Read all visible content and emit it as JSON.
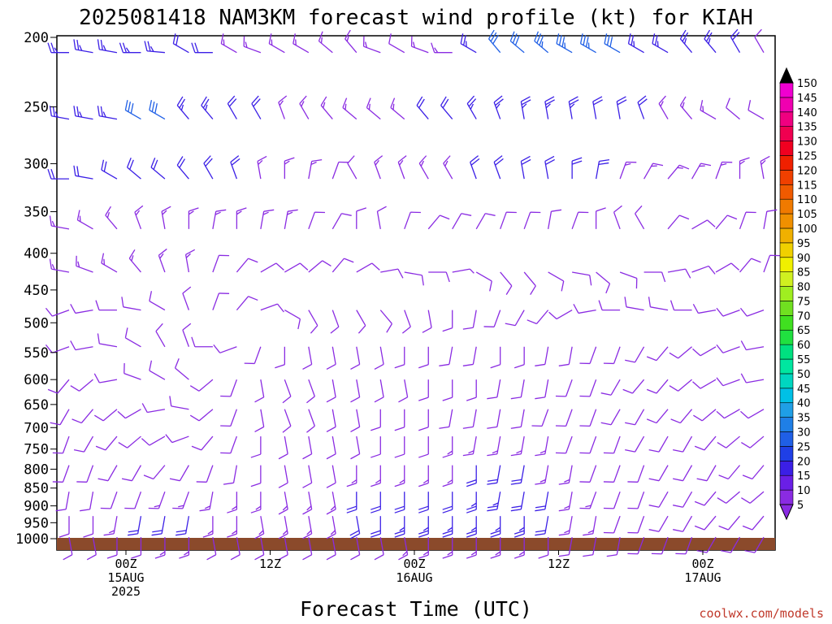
{
  "chart_data": {
    "type": "wind_barb_profile",
    "title": "2025081418 NAM3KM forecast wind profile (kt) for KIAH",
    "xlabel": "Forecast Time (UTC)",
    "credit": "coolwx.com/models",
    "y_axis": {
      "ticks": [
        200,
        250,
        300,
        350,
        400,
        450,
        500,
        550,
        600,
        650,
        700,
        750,
        800,
        850,
        900,
        950,
        1000
      ],
      "tick_labels": [
        "200",
        "250",
        "300",
        "350",
        "400",
        "450",
        "500",
        "550",
        "600",
        "650",
        "700",
        "750",
        "800",
        "850",
        "900",
        "950",
        "1000"
      ],
      "range": [
        200,
        1050
      ],
      "scale": "log"
    },
    "x_axis": {
      "range_hours": [
        -6,
        43
      ],
      "ticks": [
        {
          "hour": 0,
          "lines": [
            "00Z",
            "15AUG",
            "2025"
          ]
        },
        {
          "hour": 12,
          "lines": [
            "12Z"
          ]
        },
        {
          "hour": 24,
          "lines": [
            "00Z",
            "16AUG"
          ]
        },
        {
          "hour": 36,
          "lines": [
            "12Z"
          ]
        },
        {
          "hour": 48,
          "lines": [
            "00Z",
            "17AUG"
          ]
        }
      ]
    },
    "ground_color": "#8b4a2b",
    "colorbar": {
      "labels": [
        "5",
        "10",
        "15",
        "20",
        "25",
        "30",
        "35",
        "40",
        "45",
        "50",
        "55",
        "60",
        "65",
        "70",
        "75",
        "80",
        "85",
        "90",
        "95",
        "100",
        "105",
        "110",
        "115",
        "120",
        "125",
        "130",
        "135",
        "140",
        "145",
        "150"
      ],
      "colors": [
        "#8a2be2",
        "#6a1fe6",
        "#3b1fe6",
        "#1f3fe6",
        "#1f5fe6",
        "#1f7fe6",
        "#1f9fe6",
        "#00c0e6",
        "#00d6c0",
        "#00e6a0",
        "#00e080",
        "#20e040",
        "#40e020",
        "#70e020",
        "#a0ee20",
        "#d0f020",
        "#f0f000",
        "#f0d000",
        "#f0b000",
        "#f09000",
        "#f07a00",
        "#f05a00",
        "#f04000",
        "#f02000",
        "#f00020",
        "#f00050",
        "#f00080",
        "#f000b0",
        "#f000d0",
        "#e000e0"
      ]
    },
    "barb_columns": 30,
    "levels_hpa": [
      200,
      250,
      300,
      350,
      400,
      450,
      500,
      550,
      600,
      650,
      700,
      750,
      800,
      850,
      900,
      950,
      1000
    ],
    "barbs": [
      {
        "p": 210,
        "dirs": [
          270,
          280,
          280,
          270,
          275,
          300,
          270,
          300,
          290,
          300,
          300,
          310,
          320,
          290,
          300,
          290,
          270,
          300,
          320,
          310,
          310,
          300,
          300,
          300,
          300,
          300,
          320,
          320,
          330,
          330
        ],
        "spd": [
          25,
          25,
          25,
          25,
          25,
          20,
          20,
          15,
          15,
          15,
          15,
          15,
          15,
          15,
          10,
          15,
          15,
          25,
          30,
          30,
          35,
          35,
          35,
          30,
          25,
          25,
          25,
          25,
          20,
          10
        ]
      },
      {
        "p": 260,
        "dirs": [
          280,
          280,
          280,
          300,
          300,
          320,
          320,
          330,
          330,
          340,
          330,
          320,
          310,
          310,
          310,
          320,
          320,
          330,
          340,
          350,
          350,
          350,
          350,
          350,
          340,
          330,
          320,
          300,
          310,
          300
        ],
        "spd": [
          25,
          25,
          25,
          30,
          30,
          25,
          25,
          20,
          20,
          15,
          15,
          15,
          15,
          15,
          15,
          20,
          20,
          25,
          25,
          25,
          25,
          25,
          20,
          20,
          20,
          15,
          15,
          15,
          10,
          10
        ]
      },
      {
        "p": 315,
        "dirs": [
          270,
          280,
          300,
          310,
          310,
          320,
          330,
          340,
          350,
          360,
          10,
          20,
          330,
          340,
          340,
          330,
          330,
          340,
          340,
          350,
          350,
          360,
          10,
          20,
          30,
          40,
          30,
          20,
          360,
          350
        ],
        "spd": [
          20,
          20,
          20,
          20,
          20,
          20,
          20,
          20,
          15,
          15,
          15,
          10,
          10,
          15,
          15,
          15,
          15,
          20,
          20,
          20,
          20,
          20,
          20,
          15,
          15,
          15,
          15,
          15,
          15,
          15
        ]
      },
      {
        "p": 370,
        "dirs": [
          280,
          300,
          320,
          340,
          350,
          360,
          10,
          360,
          10,
          10,
          20,
          30,
          360,
          350,
          20,
          40,
          30,
          30,
          20,
          20,
          10,
          20,
          360,
          340,
          330,
          40,
          60,
          40,
          20,
          10
        ],
        "spd": [
          15,
          15,
          15,
          15,
          15,
          15,
          15,
          15,
          15,
          15,
          10,
          10,
          10,
          10,
          10,
          10,
          10,
          10,
          10,
          10,
          10,
          10,
          10,
          10,
          10,
          10,
          10,
          10,
          10,
          10
        ]
      },
      {
        "p": 425,
        "dirs": [
          280,
          290,
          300,
          320,
          340,
          350,
          20,
          40,
          60,
          60,
          50,
          40,
          60,
          80,
          100,
          90,
          80,
          120,
          140,
          140,
          120,
          100,
          130,
          110,
          90,
          80,
          70,
          60,
          40,
          20
        ],
        "spd": [
          15,
          15,
          15,
          15,
          15,
          15,
          10,
          10,
          10,
          10,
          10,
          10,
          10,
          10,
          10,
          10,
          5,
          10,
          10,
          10,
          10,
          10,
          10,
          10,
          10,
          10,
          10,
          10,
          10,
          10
        ]
      },
      {
        "p": 480,
        "dirs": [
          250,
          260,
          270,
          280,
          300,
          340,
          20,
          40,
          70,
          120,
          150,
          160,
          150,
          140,
          160,
          170,
          180,
          190,
          200,
          210,
          220,
          240,
          260,
          270,
          280,
          280,
          270,
          260,
          250,
          250
        ],
        "spd": [
          10,
          10,
          10,
          10,
          10,
          10,
          10,
          10,
          10,
          10,
          10,
          10,
          10,
          10,
          10,
          10,
          10,
          10,
          10,
          10,
          10,
          10,
          10,
          10,
          10,
          10,
          10,
          10,
          10,
          10
        ]
      },
      {
        "p": 540,
        "dirs": [
          250,
          260,
          280,
          300,
          330,
          340,
          270,
          250,
          200,
          180,
          170,
          170,
          170,
          170,
          180,
          180,
          190,
          190,
          180,
          180,
          190,
          190,
          200,
          200,
          210,
          220,
          230,
          240,
          250,
          260
        ],
        "spd": [
          10,
          10,
          10,
          10,
          10,
          10,
          10,
          10,
          10,
          10,
          10,
          10,
          10,
          10,
          10,
          10,
          10,
          10,
          10,
          10,
          10,
          10,
          10,
          10,
          10,
          10,
          10,
          10,
          10,
          10
        ]
      },
      {
        "p": 600,
        "dirs": [
          220,
          230,
          260,
          290,
          300,
          310,
          230,
          200,
          170,
          160,
          160,
          170,
          170,
          170,
          170,
          180,
          180,
          180,
          190,
          190,
          190,
          200,
          200,
          210,
          220,
          220,
          230,
          240,
          250,
          260
        ],
        "spd": [
          10,
          10,
          10,
          10,
          10,
          10,
          10,
          10,
          10,
          10,
          10,
          10,
          10,
          10,
          10,
          10,
          10,
          10,
          10,
          10,
          10,
          10,
          10,
          10,
          10,
          10,
          10,
          10,
          10,
          10
        ]
      },
      {
        "p": 660,
        "dirs": [
          210,
          220,
          230,
          240,
          260,
          280,
          230,
          200,
          170,
          160,
          160,
          170,
          170,
          180,
          180,
          180,
          190,
          190,
          190,
          190,
          200,
          200,
          200,
          210,
          210,
          220,
          220,
          230,
          240,
          240
        ],
        "spd": [
          10,
          10,
          10,
          10,
          10,
          10,
          10,
          10,
          10,
          10,
          10,
          10,
          10,
          10,
          10,
          10,
          10,
          10,
          10,
          10,
          10,
          10,
          10,
          10,
          10,
          10,
          10,
          10,
          10,
          10
        ]
      },
      {
        "p": 720,
        "dirs": [
          200,
          210,
          220,
          230,
          240,
          250,
          220,
          200,
          180,
          170,
          170,
          170,
          170,
          180,
          180,
          180,
          180,
          190,
          190,
          190,
          190,
          200,
          200,
          200,
          210,
          210,
          210,
          220,
          230,
          230
        ],
        "spd": [
          10,
          10,
          10,
          10,
          10,
          10,
          10,
          10,
          10,
          10,
          10,
          10,
          10,
          10,
          10,
          10,
          15,
          15,
          15,
          15,
          15,
          10,
          10,
          10,
          10,
          10,
          10,
          10,
          10,
          10
        ]
      },
      {
        "p": 790,
        "dirs": [
          200,
          200,
          210,
          210,
          220,
          210,
          200,
          190,
          180,
          170,
          170,
          170,
          180,
          180,
          180,
          180,
          180,
          180,
          190,
          190,
          190,
          190,
          200,
          200,
          200,
          210,
          210,
          210,
          220,
          220
        ],
        "spd": [
          10,
          10,
          10,
          10,
          10,
          10,
          10,
          10,
          10,
          10,
          10,
          10,
          15,
          15,
          15,
          15,
          15,
          20,
          20,
          20,
          15,
          15,
          10,
          10,
          10,
          10,
          10,
          10,
          10,
          10
        ]
      },
      {
        "p": 860,
        "dirs": [
          190,
          190,
          200,
          200,
          200,
          200,
          190,
          180,
          180,
          170,
          170,
          170,
          180,
          180,
          180,
          180,
          180,
          180,
          190,
          190,
          190,
          190,
          200,
          200,
          200,
          210,
          210,
          220,
          230,
          230
        ],
        "spd": [
          10,
          10,
          10,
          10,
          15,
          15,
          15,
          15,
          15,
          15,
          15,
          15,
          20,
          20,
          20,
          20,
          20,
          25,
          25,
          20,
          20,
          15,
          15,
          10,
          10,
          10,
          10,
          10,
          10,
          10
        ]
      },
      {
        "p": 930,
        "dirs": [
          180,
          180,
          190,
          190,
          190,
          190,
          180,
          180,
          170,
          170,
          170,
          170,
          170,
          180,
          180,
          180,
          180,
          180,
          180,
          180,
          190,
          190,
          190,
          200,
          200,
          210,
          210,
          220,
          220,
          220
        ],
        "spd": [
          10,
          10,
          15,
          20,
          20,
          20,
          15,
          15,
          15,
          15,
          15,
          15,
          20,
          20,
          25,
          25,
          25,
          25,
          25,
          25,
          20,
          15,
          15,
          10,
          10,
          10,
          10,
          10,
          10,
          10
        ]
      },
      {
        "p": 995,
        "dirs": [
          170,
          170,
          180,
          180,
          180,
          180,
          170,
          170,
          170,
          170,
          170,
          170,
          170,
          170,
          170,
          180,
          180,
          180,
          180,
          180,
          180,
          190,
          190,
          190,
          200,
          200,
          200,
          210,
          210,
          210
        ],
        "spd": [
          10,
          10,
          10,
          10,
          15,
          15,
          10,
          10,
          10,
          10,
          10,
          10,
          10,
          10,
          15,
          15,
          15,
          15,
          15,
          15,
          10,
          10,
          10,
          10,
          10,
          10,
          10,
          10,
          10,
          10
        ]
      }
    ]
  }
}
